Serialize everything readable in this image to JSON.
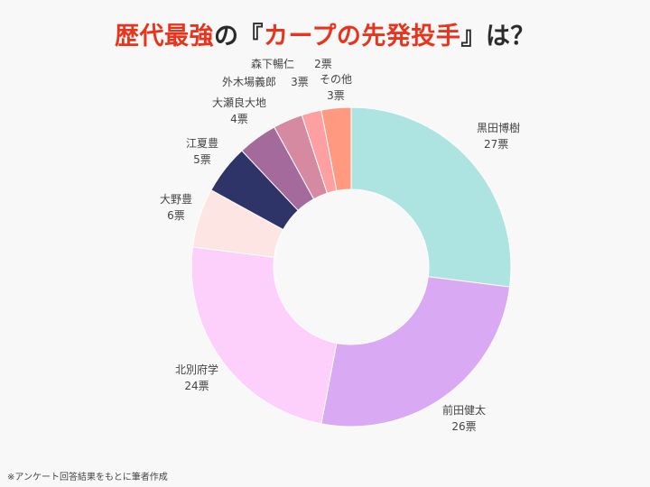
{
  "title": {
    "prefix": "歴代最強",
    "mid1": "の",
    "open_bracket": "『",
    "highlight": "カープの先発投手",
    "close_bracket": "』",
    "suffix": "は？"
  },
  "footnote": "※アンケート回答結果をもとに筆者作成",
  "chart_data": {
    "type": "pie",
    "donut": true,
    "unit": "票",
    "slices": [
      {
        "label": "黒田博樹",
        "value": 27,
        "value_label": "27票",
        "color": "#ade4e2"
      },
      {
        "label": "前田健太",
        "value": 26,
        "value_label": "26票",
        "color": "#d9aaf3"
      },
      {
        "label": "北別府学",
        "value": 24,
        "value_label": "24票",
        "color": "#fdd0fc"
      },
      {
        "label": "大野豊",
        "value": 6,
        "value_label": "6票",
        "color": "#fde5e3"
      },
      {
        "label": "江夏豊",
        "value": 5,
        "value_label": "5票",
        "color": "#2e3368"
      },
      {
        "label": "大瀬良大地",
        "value": 4,
        "value_label": "4票",
        "color": "#a56a9c"
      },
      {
        "label": "外木場義郎",
        "value": 3,
        "value_label": "3票",
        "color": "#d68aa2"
      },
      {
        "label": "森下暢仁",
        "value": 2,
        "value_label": "2票",
        "color": "#fe9fa2"
      },
      {
        "label": "その他",
        "value": 3,
        "value_label": "3票",
        "color": "#ff9a80"
      }
    ]
  }
}
